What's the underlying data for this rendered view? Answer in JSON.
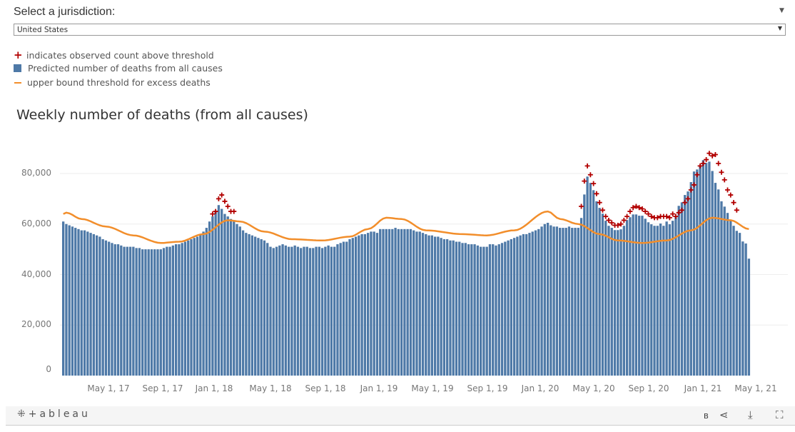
{
  "filter": {
    "label": "Select a jurisdiction:",
    "selected": "United States"
  },
  "legend": {
    "observed": "indicates observed count above threshold",
    "predicted": "Predicted number of deaths from all causes",
    "threshold": "upper bound threshold for excess deaths"
  },
  "colors": {
    "bars": "#4e79a7",
    "threshold": "#f28e2b",
    "observed": "#b20000"
  },
  "toolbar": {
    "logo": "+ableau",
    "b_label": "B",
    "share": "share-icon",
    "download": "download-icon",
    "fullscreen": "fullscreen-icon"
  },
  "chart_data": {
    "type": "bar",
    "title": "Weekly number of deaths (from all causes)",
    "value_unit": "thousands of deaths",
    "xlabel": "",
    "ylabel": "",
    "ylim": [
      0,
      93.5
    ],
    "yticks": [
      "0",
      "20,000",
      "40,000",
      "60,000",
      "80,000"
    ],
    "ytick_values": [
      0,
      20,
      40,
      60,
      80
    ],
    "xticks": [
      "May 1, 17",
      "Sep 1, 17",
      "Jan 1, 18",
      "May 1, 18",
      "Sep 1, 18",
      "Jan 1, 19",
      "May 1, 19",
      "Sep 1, 19",
      "Jan 1, 20",
      "May 1, 20",
      "Sep 1, 20",
      "Jan 1, 21",
      "May 1, 21"
    ],
    "grid": true,
    "predicted": [
      61,
      60,
      59.5,
      59,
      58.5,
      58,
      57.5,
      57.5,
      57,
      56.5,
      56,
      55.5,
      55,
      54,
      53.5,
      53,
      52.5,
      52,
      52,
      51.5,
      51,
      51,
      51,
      51,
      50.5,
      50.5,
      50,
      50,
      50,
      50,
      50,
      50,
      50,
      50.5,
      51,
      51,
      51.5,
      52,
      52,
      52.5,
      53,
      53.5,
      54,
      54.5,
      55,
      56,
      57,
      58.5,
      61,
      63,
      65,
      67.5,
      66,
      64,
      63,
      62,
      61,
      60,
      59,
      57.5,
      56.5,
      56,
      55.5,
      55,
      54.5,
      54,
      53.5,
      52.5,
      51,
      50.5,
      51,
      51.5,
      52,
      51.5,
      51,
      51,
      51.5,
      51,
      50.5,
      51,
      51,
      50.5,
      50.5,
      51,
      51,
      50.5,
      51,
      51.5,
      51,
      51,
      52,
      52.5,
      53,
      53,
      54,
      54.5,
      55,
      55.5,
      56,
      56,
      56.5,
      57,
      57,
      56.5,
      58,
      58,
      58,
      58,
      58,
      58.5,
      58,
      58,
      58,
      58,
      58,
      57.5,
      57,
      57,
      56.5,
      56,
      55.5,
      55.5,
      55,
      55,
      54.5,
      54,
      54,
      53.5,
      53.5,
      53,
      53,
      52.5,
      52.5,
      52,
      52,
      52,
      51.5,
      51,
      51,
      51,
      52,
      52,
      51.5,
      52,
      52.5,
      53,
      53.5,
      54,
      54.5,
      55,
      55.5,
      56,
      56,
      56.5,
      57,
      57.5,
      58,
      59,
      60,
      60.5,
      59.5,
      59,
      59,
      58.5,
      58.5,
      58.5,
      59,
      58.5,
      58.5,
      58.5,
      62.4,
      71.7,
      78.8,
      76.3,
      73.4,
      69,
      66.4,
      64.1,
      61.3,
      59.3,
      58.5,
      57.6,
      57.6,
      57.9,
      59.3,
      61.6,
      62.7,
      63.8,
      63.8,
      63.3,
      63.3,
      62.1,
      60.7,
      59.9,
      59.3,
      59.3,
      60.2,
      59.3,
      61,
      59.9,
      61.3,
      62.7,
      67.2,
      68.6,
      71.5,
      72.9,
      76.6,
      80.8,
      81.6,
      83,
      85.3,
      84.2,
      84.7,
      81,
      76.3,
      73.7,
      69,
      66.9,
      64.4,
      61.3,
      59.3,
      57.3,
      56.5,
      53.1,
      52.3,
      46.3
    ],
    "threshold_knots": [
      [
        0,
        64
      ],
      [
        1,
        64.5
      ],
      [
        6,
        62
      ],
      [
        14,
        59
      ],
      [
        23,
        55.5
      ],
      [
        32,
        52.5
      ],
      [
        38,
        53
      ],
      [
        46,
        56
      ],
      [
        54,
        61.5
      ],
      [
        58,
        61
      ],
      [
        66,
        57
      ],
      [
        75,
        54
      ],
      [
        85,
        53.5
      ],
      [
        94,
        55
      ],
      [
        100,
        58
      ],
      [
        106,
        62.5
      ],
      [
        111,
        62
      ],
      [
        119,
        57.5
      ],
      [
        131,
        56
      ],
      [
        139,
        55.5
      ],
      [
        148,
        57.5
      ],
      [
        159,
        65
      ],
      [
        163,
        62
      ],
      [
        169,
        60
      ],
      [
        176,
        56
      ],
      [
        182,
        53.5
      ],
      [
        190,
        52.5
      ],
      [
        198,
        53.5
      ],
      [
        206,
        57.5
      ],
      [
        213,
        62.5
      ],
      [
        219,
        61.5
      ],
      [
        225,
        58
      ]
    ],
    "observed_above_threshold": [
      {
        "start_week": 49,
        "values": [
          64,
          65,
          70,
          71.5,
          69,
          67,
          65,
          65
        ]
      },
      {
        "start_week": 170,
        "values": [
          67,
          77,
          83,
          79.5,
          76,
          72,
          68.5,
          65.5,
          63,
          61.5,
          60.5,
          59.5,
          59.5,
          60,
          61.5,
          63,
          65,
          66.5,
          67,
          66.5,
          66,
          65,
          64,
          63,
          62.5,
          62.5,
          63,
          63,
          63,
          62.5,
          64,
          63,
          64.5,
          65.5,
          68.5,
          70,
          73.5,
          75.5,
          79.5,
          83,
          84,
          85.5,
          88,
          87,
          87.5,
          84,
          80.5,
          77.5,
          73.5,
          71.5,
          68.5,
          65.5
        ]
      }
    ]
  }
}
